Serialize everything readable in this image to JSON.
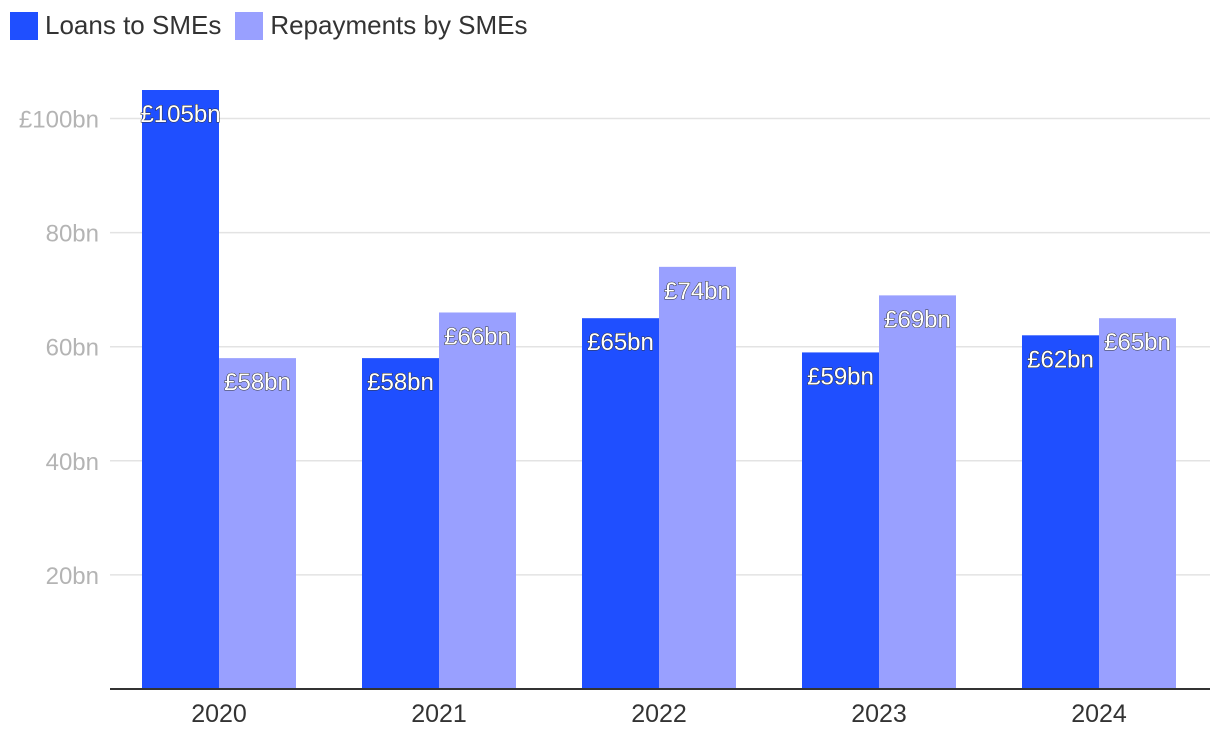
{
  "chart_data": {
    "type": "bar",
    "title": "",
    "xlabel": "",
    "ylabel": "",
    "categories": [
      "2020",
      "2021",
      "2022",
      "2023",
      "2024"
    ],
    "series": [
      {
        "name": "Loans to SMEs",
        "color": "#1f4fff",
        "values": [
          105,
          58,
          65,
          59,
          62
        ],
        "labels": [
          "£105bn",
          "£58bn",
          "£65bn",
          "£59bn",
          "£62bn"
        ]
      },
      {
        "name": "Repayments by SMEs",
        "color": "#99a0ff",
        "values": [
          58,
          66,
          74,
          69,
          65
        ],
        "labels": [
          "£58bn",
          "£66bn",
          "£74bn",
          "£69bn",
          "£65bn"
        ]
      }
    ],
    "ylim": [
      0,
      105
    ],
    "yticks": [
      20,
      40,
      60,
      80,
      100
    ],
    "ytick_labels": [
      "20bn",
      "40bn",
      "60bn",
      "80bn",
      "£100bn"
    ],
    "grid": true,
    "legend_position": "top-left"
  }
}
